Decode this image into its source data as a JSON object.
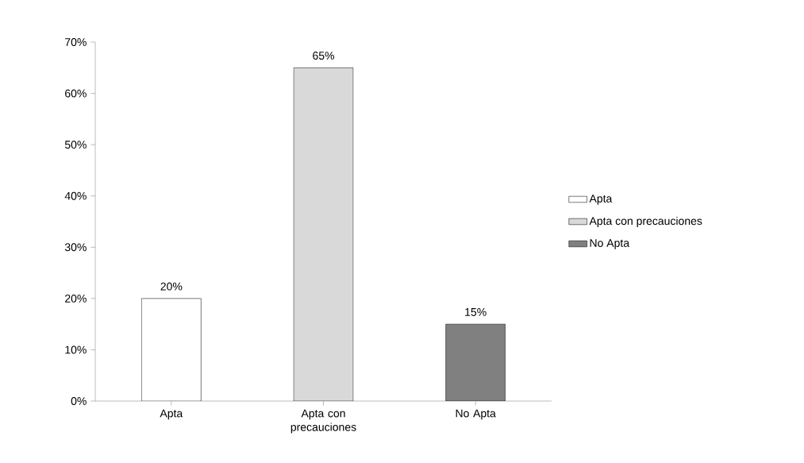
{
  "chart_data": {
    "type": "bar",
    "categories": [
      "Apta",
      "Apta con precauciones",
      "No Apta"
    ],
    "series": [
      {
        "name": "Apta",
        "color": "#ffffff",
        "values": [
          20,
          null,
          null
        ],
        "value_labels": [
          "20%",
          null,
          null
        ]
      },
      {
        "name": "Apta con precauciones",
        "color": "#d9d9d9",
        "values": [
          null,
          65,
          null
        ],
        "value_labels": [
          null,
          "65%",
          null
        ]
      },
      {
        "name": "No Apta",
        "color": "#808080",
        "values": [
          null,
          null,
          15
        ],
        "value_labels": [
          null,
          null,
          "15%"
        ]
      }
    ],
    "ylim": [
      0,
      70
    ],
    "yticks": [
      {
        "value": 0,
        "label": "0%"
      },
      {
        "value": 10,
        "label": "10%"
      },
      {
        "value": 20,
        "label": "20%"
      },
      {
        "value": 30,
        "label": "30%"
      },
      {
        "value": 40,
        "label": "40%"
      },
      {
        "value": 50,
        "label": "50%"
      },
      {
        "value": 60,
        "label": "60%"
      },
      {
        "value": 70,
        "label": "70%"
      }
    ],
    "grid": false,
    "legend": "right"
  }
}
